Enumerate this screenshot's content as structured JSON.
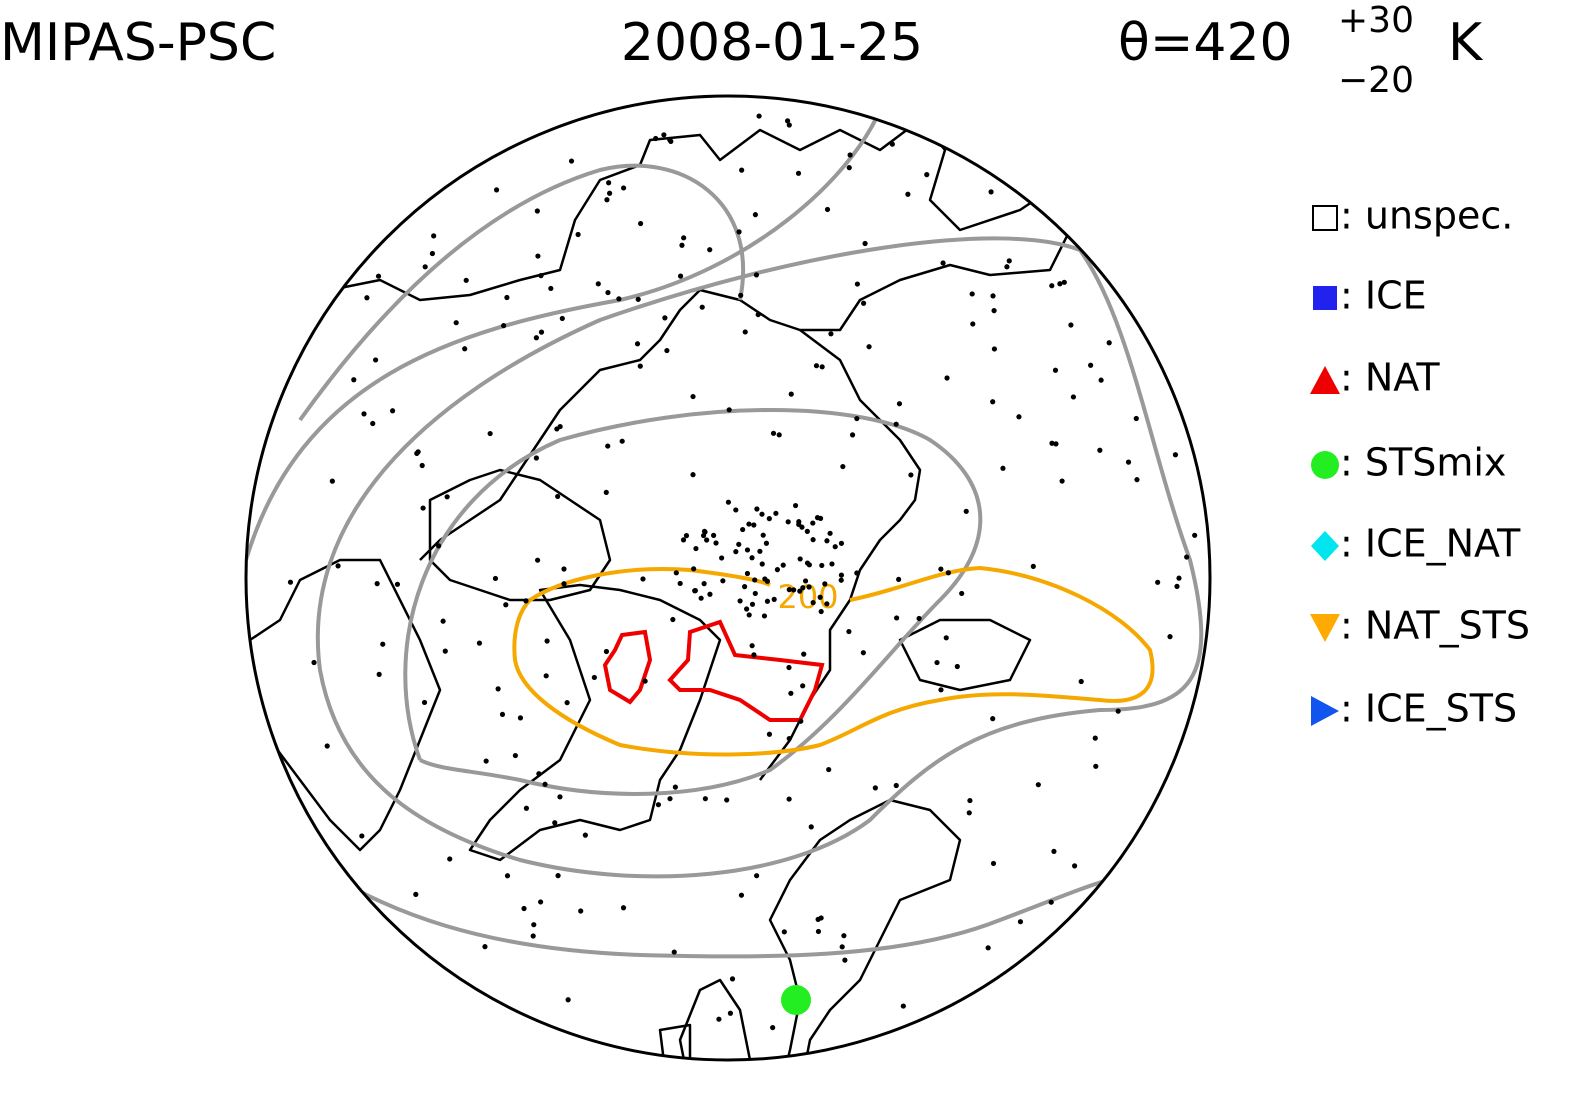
{
  "header": {
    "instrument": "MIPAS-PSC",
    "date": "2008-01-25",
    "theta": {
      "base": "θ=420",
      "upper": "+30",
      "lower": "−20",
      "unit": "K"
    }
  },
  "map": {
    "contour_label": "200"
  },
  "legend": {
    "items": [
      {
        "label": ": unspec."
      },
      {
        "label": ": ICE"
      },
      {
        "label": ": NAT"
      },
      {
        "label": ": STSmix"
      },
      {
        "label": ": ICE_NAT"
      },
      {
        "label": ": NAT_STS"
      },
      {
        "label": ": ICE_STS"
      }
    ]
  }
}
